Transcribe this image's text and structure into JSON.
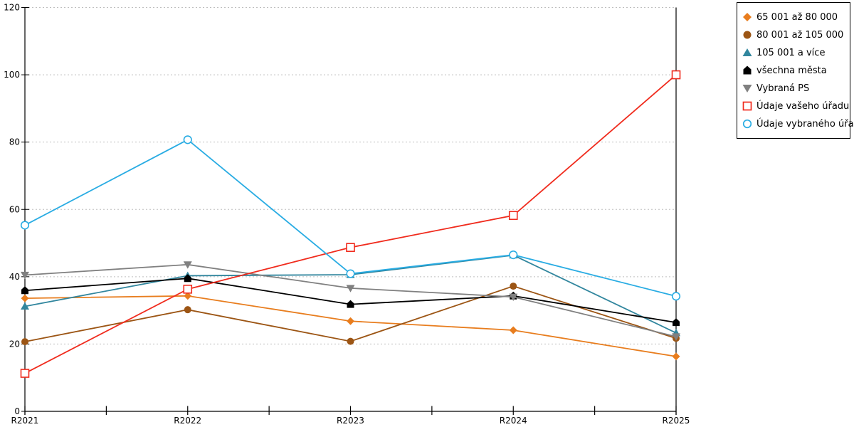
{
  "chart_data": {
    "type": "line",
    "title": "",
    "xlabel": "",
    "ylabel": "",
    "categories": [
      "R2021",
      "R2022",
      "R2023",
      "R2024",
      "R2025"
    ],
    "y_ticks": [
      0,
      20,
      40,
      60,
      80,
      100,
      120
    ],
    "ylim": [
      0,
      120
    ],
    "grid": "horizontal-dotted",
    "legend_position": "top-right",
    "series": [
      {
        "name": "65 001 až 80 000",
        "marker": "diamond",
        "color": "#E87D1E",
        "values": [
          33.6,
          34.3,
          26.8,
          24.1,
          16.3
        ]
      },
      {
        "name": "80 001 až 105 000",
        "marker": "circle",
        "color": "#9C5514",
        "values": [
          20.7,
          30.2,
          20.8,
          37.2,
          21.7
        ]
      },
      {
        "name": "105 001 a více",
        "marker": "triangle-up",
        "color": "#31869E",
        "values": [
          31.2,
          40.3,
          40.6,
          46.4,
          23.3
        ]
      },
      {
        "name": "všechna města",
        "marker": "pentagon",
        "color": "#000000",
        "values": [
          35.9,
          39.5,
          31.8,
          34.3,
          26.4
        ]
      },
      {
        "name": "Vybraná PS",
        "marker": "triangle-down",
        "color": "#808080",
        "values": [
          40.5,
          43.6,
          36.6,
          34.0,
          22.2
        ]
      },
      {
        "name": "Údaje vašeho úřadu",
        "marker": "square-open",
        "color": "#F02B1D",
        "values": [
          11.3,
          36.3,
          48.7,
          58.2,
          100.0
        ]
      },
      {
        "name": "Údaje vybraného úřadu",
        "marker": "circle-open",
        "color": "#29ACE3",
        "values": [
          55.3,
          80.7,
          40.9,
          46.5,
          34.2
        ]
      }
    ]
  },
  "colors": {
    "background": "#FFFFFF",
    "grid": "#BFBFBF",
    "axis": "#000000",
    "tick_text": "#000000",
    "legend_border": "#000000"
  }
}
